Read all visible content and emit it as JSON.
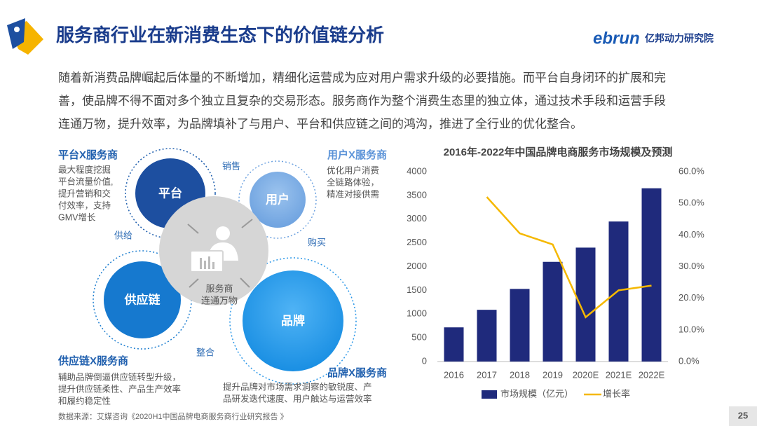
{
  "header": {
    "title": "服务商行业在新消费生态下的价值链分析"
  },
  "logo": {
    "brand": "ebrun",
    "org": "亿邦动力研究院"
  },
  "body": {
    "lines": [
      "随着新消费品牌崛起后体量的不断增加，精细化运营成为应对用户需求升级的必要措施。而平台自身闭环的扩展和完",
      "善，使品牌不得不面对多个独立且复杂的交易形态。服务商作为整个消费生态里的独立体，通过技术手段和运营手段",
      "连通万物，提升效率，为品牌填补了与用户、平台和供应链之间的鸿沟，推进了全行业的优化整合。"
    ]
  },
  "diagram": {
    "nodes": [
      "平台",
      "用户",
      "供应链",
      "品牌"
    ],
    "center": [
      "服务商",
      "连通万物"
    ],
    "relations": [
      "销售",
      "购买",
      "供给",
      "整合"
    ],
    "corners": [
      {
        "title": "平台X服务商",
        "lines": [
          "最大程度挖掘",
          "平台流量价值,",
          "提升营销和交",
          "付效率，支持",
          "GMV增长"
        ]
      },
      {
        "title": "用户X服务商",
        "lines": [
          "优化用户消费",
          "全链路体验，",
          "精准对接供需"
        ]
      },
      {
        "title": "供应链X服务商",
        "lines": [
          "辅助品牌倒逼供应链转型升级，",
          "提升供应链柔性、产品生产效率",
          "和履约稳定性"
        ]
      },
      {
        "title": "品牌X服务商",
        "lines": [
          "提升品牌对市场需求洞察的敏锐度、产",
          "品研发迭代速度、用户触达与运营效率"
        ]
      }
    ]
  },
  "chart_data": {
    "type": "bar",
    "title": "2016年-2022年中国品牌电商服务市场规模及预测",
    "categories": [
      "2016",
      "2017",
      "2018",
      "2019",
      "2020E",
      "2021E",
      "2022E"
    ],
    "series": [
      {
        "name": "市场规模（亿元）",
        "type": "bar",
        "color": "#1f2a7c",
        "values": [
          720,
          1090,
          1530,
          2100,
          2400,
          2950,
          3650
        ]
      },
      {
        "name": "增长率",
        "type": "line",
        "axis": "y2",
        "color": "#f5b800",
        "values": [
          null,
          52,
          40.5,
          37,
          14,
          22.5,
          24
        ]
      }
    ],
    "ylim": [
      0,
      4000
    ],
    "yticks": [
      0,
      500,
      1000,
      1500,
      2000,
      2500,
      3000,
      3500,
      4000
    ],
    "y2lim": [
      0,
      60
    ],
    "y2ticks": [
      {
        "value": 0,
        "label": "0.0%"
      },
      {
        "value": 10,
        "label": "10.0%"
      },
      {
        "value": 20,
        "label": "20.0%"
      },
      {
        "value": 30,
        "label": "30.0%"
      },
      {
        "value": 40,
        "label": "40.0%"
      },
      {
        "value": 50,
        "label": "50.0%"
      },
      {
        "value": 60,
        "label": "60.0%"
      }
    ],
    "grid": false,
    "legend": "bottom"
  },
  "footer": {
    "source": "数据来源：艾媒咨询《2020H1中国品牌电商服务商行业研究报告 》",
    "page": "25"
  }
}
